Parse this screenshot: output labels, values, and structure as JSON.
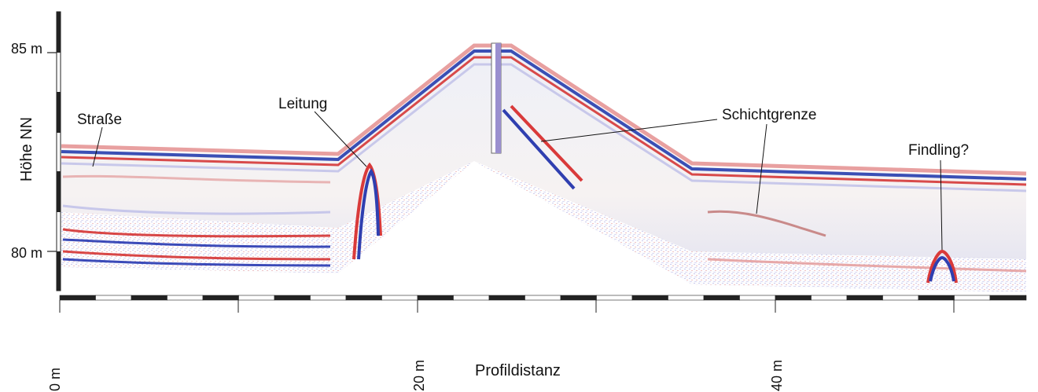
{
  "chart_data": {
    "type": "other",
    "title": "",
    "xlabel": "Profildistanz",
    "ylabel": "Höhe NN",
    "x_ticks": [
      "0 m",
      "20 m",
      "40 m"
    ],
    "y_ticks": [
      "85 m",
      "80 m"
    ],
    "xlim": [
      0,
      54
    ],
    "ylim": [
      78.5,
      86.5
    ],
    "surface_profile": {
      "x": [
        0,
        16,
        24.5,
        35,
        54
      ],
      "elevation_m": [
        82.5,
        82.4,
        85.5,
        81.9,
        81.5
      ]
    },
    "annotations": [
      {
        "label": "Straße",
        "x": 2,
        "elevation_m": 82.1
      },
      {
        "label": "Leitung",
        "x": 17,
        "elevation_m": 81.6
      },
      {
        "label": "Schichtgrenze",
        "x": 27,
        "elevation_m": 83.0
      },
      {
        "label": "Schichtgrenze",
        "x": 39,
        "elevation_m": 81.0
      },
      {
        "label": "Findling?",
        "x": 49,
        "elevation_m": 79.7
      }
    ]
  }
}
